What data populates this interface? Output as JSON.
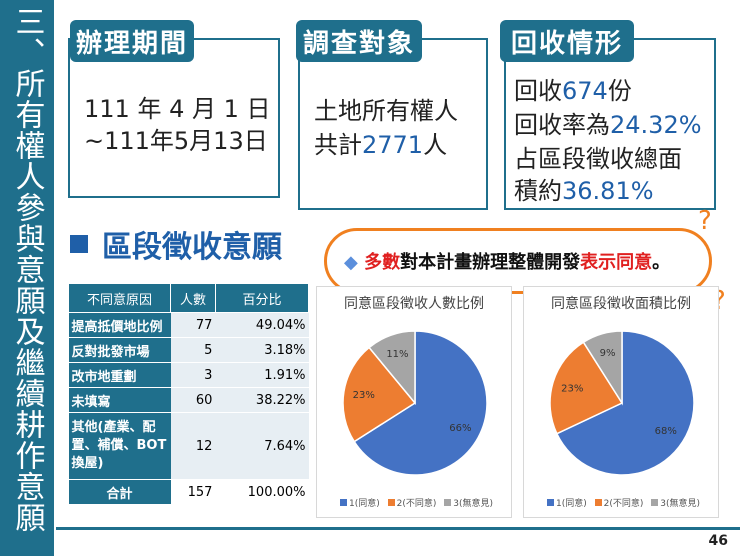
{
  "sidebar": {
    "title": "三、所有權人參與意願及繼續耕作意願"
  },
  "cards": {
    "period": {
      "tag": "辦理期間",
      "line1": "111 年 4 月 1 日",
      "line2": "~111年5月13日"
    },
    "target": {
      "tag": "調查對象",
      "line1": "土地所有權人",
      "line2_prefix": "共計",
      "line2_value": "2771",
      "line2_suffix": "人"
    },
    "return": {
      "tag": "回收情形",
      "l1_prefix": "回收",
      "l1_value": "674",
      "l1_suffix": "份",
      "l2_prefix": "回收率為",
      "l2_value": "24.32%",
      "l3": "占區段徵收總面",
      "l4_prefix": "積約",
      "l4_value": "36.81%"
    }
  },
  "section": {
    "title": "區段徵收意願"
  },
  "highlight": {
    "diamond": "◆",
    "p1": "多數",
    "p2": "對本計畫辦理整體開發",
    "p3": "表示同意",
    "p4": "。"
  },
  "table": {
    "headers": [
      "不同意原因",
      "人數",
      "百分比"
    ],
    "rows": [
      {
        "reason": "提高抵價地比例",
        "count": "77",
        "pct": "49.04%"
      },
      {
        "reason": "反對批發市場",
        "count": "5",
        "pct": "3.18%"
      },
      {
        "reason": "改市地重劃",
        "count": "3",
        "pct": "1.91%"
      },
      {
        "reason": "未填寫",
        "count": "60",
        "pct": "38.22%"
      },
      {
        "reason": "其他(產業、配置、補償、BOT換屋)",
        "count": "12",
        "pct": "7.64%"
      },
      {
        "reason": "合計",
        "count": "157",
        "pct": "100.00%"
      }
    ]
  },
  "chart_data": [
    {
      "type": "pie",
      "title": "同意區段徵收人數比例",
      "categories": [
        "1(同意)",
        "2(不同意)",
        "3(無意見)"
      ],
      "values": [
        66,
        23,
        11
      ],
      "labels": [
        "66%",
        "23%",
        "11%"
      ],
      "colors": [
        "#4472c4",
        "#ed7d31",
        "#a5a5a5"
      ],
      "legend": "bottom"
    },
    {
      "type": "pie",
      "title": "同意區段徵收面積比例",
      "categories": [
        "1(同意)",
        "2(不同意)",
        "3(無意見)"
      ],
      "values": [
        68,
        23,
        9
      ],
      "labels": [
        "68%",
        "23%",
        "9%"
      ],
      "colors": [
        "#4472c4",
        "#ed7d31",
        "#a5a5a5"
      ],
      "legend": "bottom"
    }
  ],
  "page": {
    "number": "46",
    "qmark": "?"
  }
}
